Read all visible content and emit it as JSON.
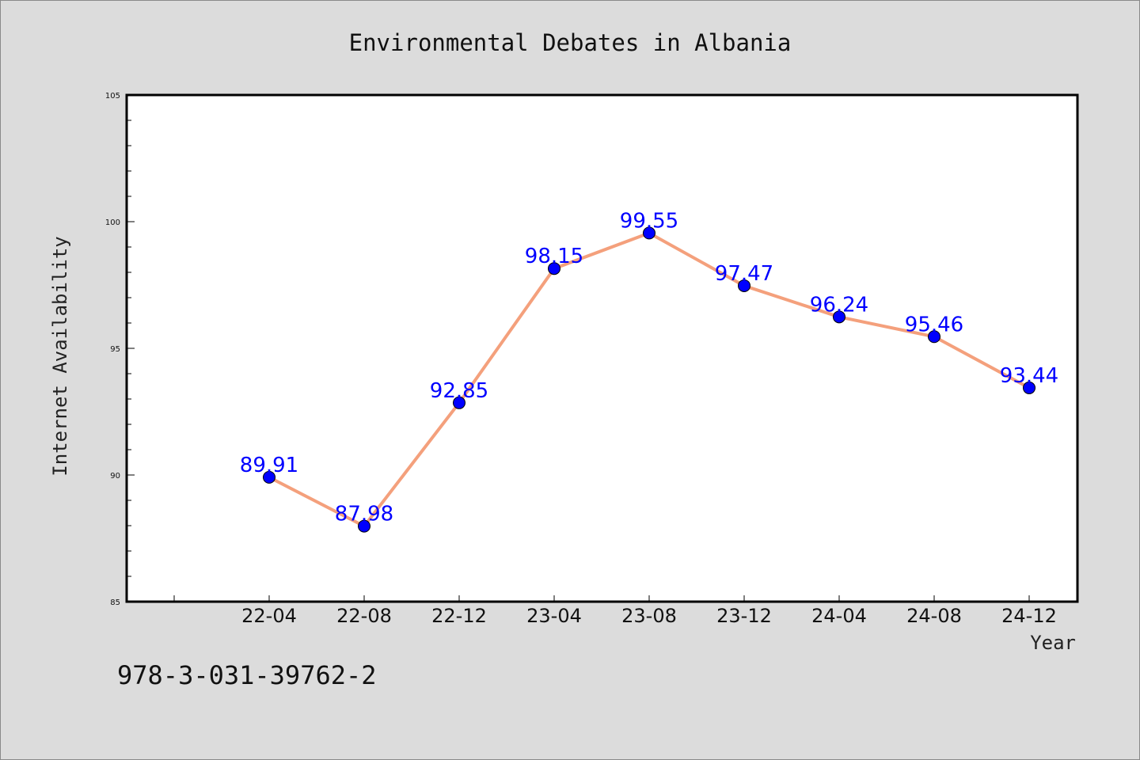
{
  "chart_data": {
    "type": "line",
    "title": "Environmental Debates in Albania",
    "xlabel": "Year",
    "ylabel": "Internet Availability",
    "categories": [
      "22-04",
      "22-08",
      "22-12",
      "23-04",
      "23-08",
      "23-12",
      "24-04",
      "24-08",
      "24-12"
    ],
    "series": [
      {
        "values": [
          89.91,
          87.98,
          92.85,
          98.15,
          99.55,
          97.47,
          96.24,
          95.46,
          93.44
        ],
        "data_labels": [
          "89.91",
          "87.98",
          "92.85",
          "98.15",
          "99.55",
          "97.47",
          "96.24",
          "95.46",
          "93.44"
        ],
        "line_color": "#f4a07c",
        "marker_color": "#0000ff"
      }
    ],
    "ylim": [
      85,
      105
    ],
    "yticks": [
      85,
      90,
      95,
      100,
      105
    ],
    "grid": false,
    "legend": "none",
    "plot_background": "#ffffff",
    "figure_background": "#dcdcdc"
  },
  "footnote": "978-3-031-39762-2"
}
